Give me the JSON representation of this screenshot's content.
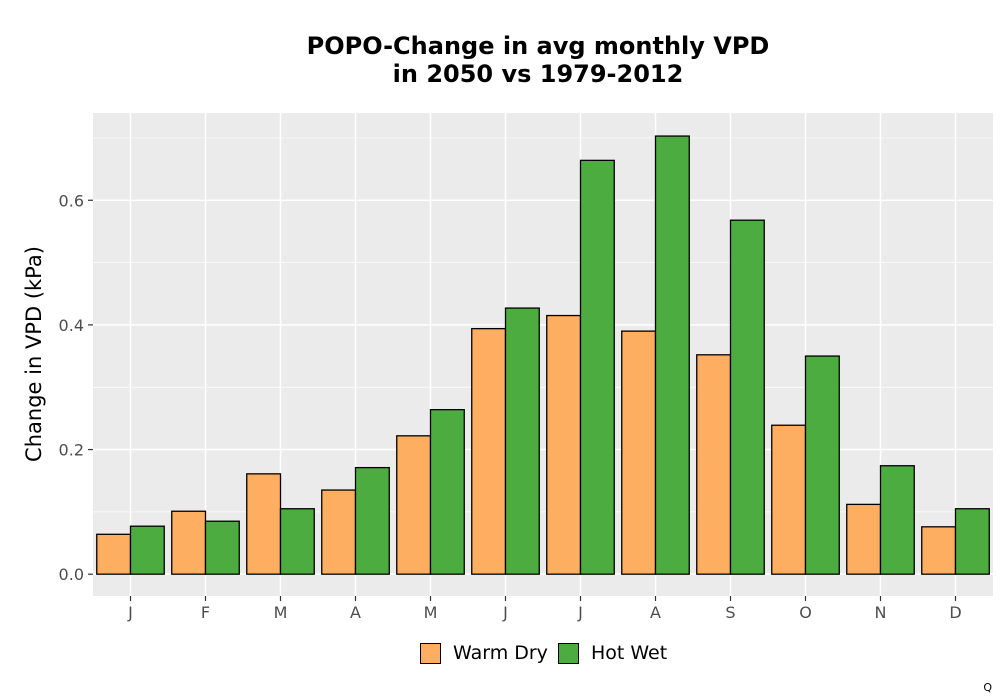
{
  "chart_data": {
    "type": "bar",
    "title_line1": "POPO-Change in avg monthly VPD",
    "title_line2": "in 2050 vs 1979-2012",
    "xlabel": "",
    "ylabel": "Change in VPD (kPa)",
    "categories": [
      "J",
      "F",
      "M",
      "A",
      "M",
      "J",
      "J",
      "A",
      "S",
      "O",
      "N",
      "D"
    ],
    "series": [
      {
        "name": "Warm Dry",
        "color": "#FDAE61",
        "values": [
          0.064,
          0.101,
          0.161,
          0.135,
          0.222,
          0.394,
          0.415,
          0.39,
          0.352,
          0.239,
          0.112,
          0.076
        ]
      },
      {
        "name": "Hot Wet",
        "color": "#4DAC40",
        "values": [
          0.077,
          0.085,
          0.105,
          0.171,
          0.264,
          0.427,
          0.664,
          0.703,
          0.568,
          0.35,
          0.174,
          0.105
        ]
      }
    ],
    "ylim": [
      -0.035,
      0.74
    ],
    "yticks": [
      0.0,
      0.2,
      0.4,
      0.6
    ],
    "ytick_labels": [
      "0.0",
      "0.2",
      "0.4",
      "0.6"
    ],
    "grid": true,
    "legend_position": "bottom",
    "panel_color": "#EBEBEB"
  },
  "corner_text": "Q"
}
